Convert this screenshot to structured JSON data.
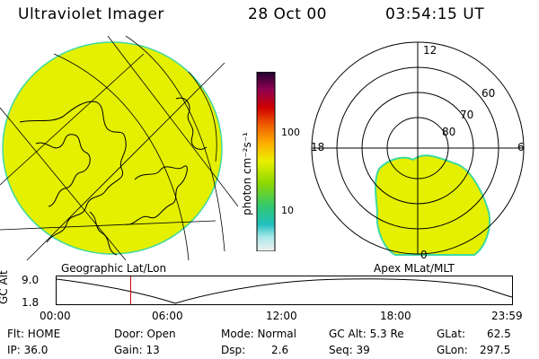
{
  "header": {
    "title": "Ultraviolet Imager",
    "date": "28 Oct 00",
    "time": "03:54:15 UT"
  },
  "colors": {
    "aurora_fill": "#e4f000",
    "aurora_edge": "#3fd9a0"
  },
  "colorbar": {
    "unit_label": "photon cm⁻²s⁻¹",
    "ticks": [
      {
        "label": "100",
        "value": 100
      },
      {
        "label": "10",
        "value": 10
      }
    ],
    "scale": "log",
    "stops": [
      "#f0f0f0",
      "#40e0d0",
      "#22c0c0",
      "#5cd05c",
      "#aee000",
      "#e8f000",
      "#ffb000",
      "#f07000",
      "#d00000",
      "#a00040",
      "#200030"
    ]
  },
  "geo_panel": {
    "label": "Geographic Lat/Lon"
  },
  "polar_panel": {
    "label": "Apex MLat/MLT",
    "mlt_labels": [
      "12",
      "18",
      "6",
      "0"
    ],
    "lat_labels": [
      "60",
      "70",
      "80"
    ]
  },
  "timeline": {
    "ylabel": "GC Alt",
    "y_ticks": [
      "9.0",
      "1.8"
    ],
    "x_ticks": [
      "00:00",
      "06:00",
      "12:00",
      "18:00",
      "23:59"
    ],
    "current_time_hours": 3.904
  },
  "status": {
    "flt": "Flt: HOME",
    "ip": "IP: 36.0",
    "door": "Door: Open",
    "gain": "Gain: 13",
    "mode": "Mode: Normal",
    "dsp_label": "Dsp:",
    "dsp_value": "2.6",
    "gc_alt": "GC Alt: 5.3 Re",
    "seq": "Seq: 39",
    "glat_label": "GLat:",
    "glat_value": "62.5",
    "glon_label": "GLon:",
    "glon_value": "297.5"
  }
}
